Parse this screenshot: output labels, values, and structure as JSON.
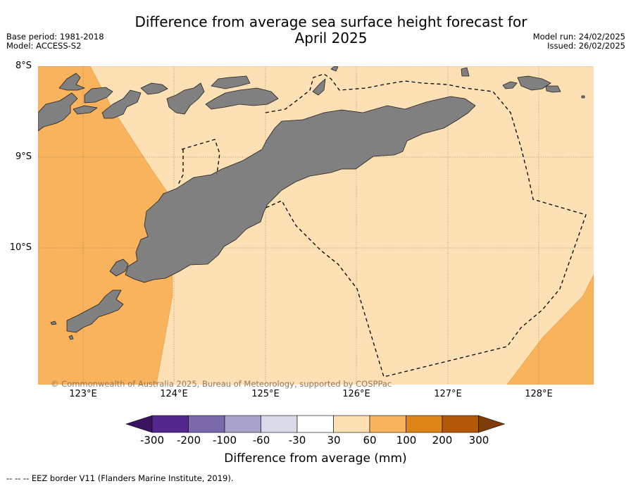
{
  "title_line1": "Difference from average sea surface height forecast for",
  "title_line2": "April 2025",
  "base_period": "Base period: 1981-2018",
  "model": "Model: ACCESS-S2",
  "model_run": "Model run: 24/02/2025",
  "issued": "Issued: 26/02/2025",
  "lat_labels": [
    "8°S",
    "9°S",
    "10°S"
  ],
  "lon_labels": [
    "123°E",
    "124°E",
    "125°E",
    "126°E",
    "127°E",
    "128°E"
  ],
  "copyright": "© Commonwealth of Australia 2025, Bureau of Meteorology, supported by COSPPac",
  "colorbar": {
    "ticks": [
      "-300",
      "-200",
      "-100",
      "-60",
      "-30",
      "30",
      "60",
      "100",
      "200",
      "300"
    ],
    "colors": [
      "#3b1460",
      "#54278f",
      "#7a6aab",
      "#a9a2cc",
      "#d9daea",
      "#ffffff",
      "#fde0b3",
      "#f9b35c",
      "#de8418",
      "#b35806",
      "#7f3b08"
    ],
    "label": "Difference from average (mm)"
  },
  "eez_note": "--  --  -- EEZ border V11 (Flanders Marine Institute, 2019).",
  "map_colors": {
    "band_30_60": "#fde0b3",
    "band_60_100": "#f9b35c",
    "land": "#808080"
  }
}
